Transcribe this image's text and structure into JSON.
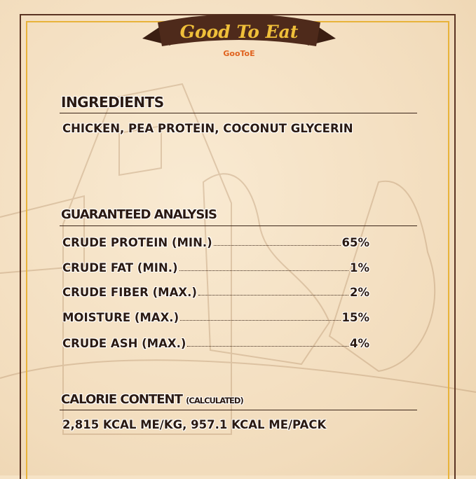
{
  "banner": {
    "title": "Good To Eat",
    "brand": "GooToE"
  },
  "ingredients": {
    "heading": "INGREDIENTS",
    "text": "CHICKEN, PEA PROTEIN, COCONUT GLYCERIN"
  },
  "analysis": {
    "heading": "GUARANTEED ANALYSIS",
    "rows": [
      {
        "label": "CRUDE PROTEIN (MIN.)",
        "value": "65%"
      },
      {
        "label": "CRUDE FAT (MIN.)",
        "value": "1%"
      },
      {
        "label": "CRUDE FIBER (MAX.)",
        "value": "2%"
      },
      {
        "label": "MOISTURE (MAX.)",
        "value": "15%"
      },
      {
        "label": "CRUDE ASH (MAX.)",
        "value": "4%"
      }
    ]
  },
  "calorie": {
    "heading": "CALORIE CONTENT",
    "note": "(CALCULATED)",
    "text": "2,815 KCAL ME/KG, 957.1 KCAL ME/PACK"
  },
  "colors": {
    "brown": "#4e2a1b",
    "gold": "#e8b33a",
    "background": "#f6e3c6"
  }
}
